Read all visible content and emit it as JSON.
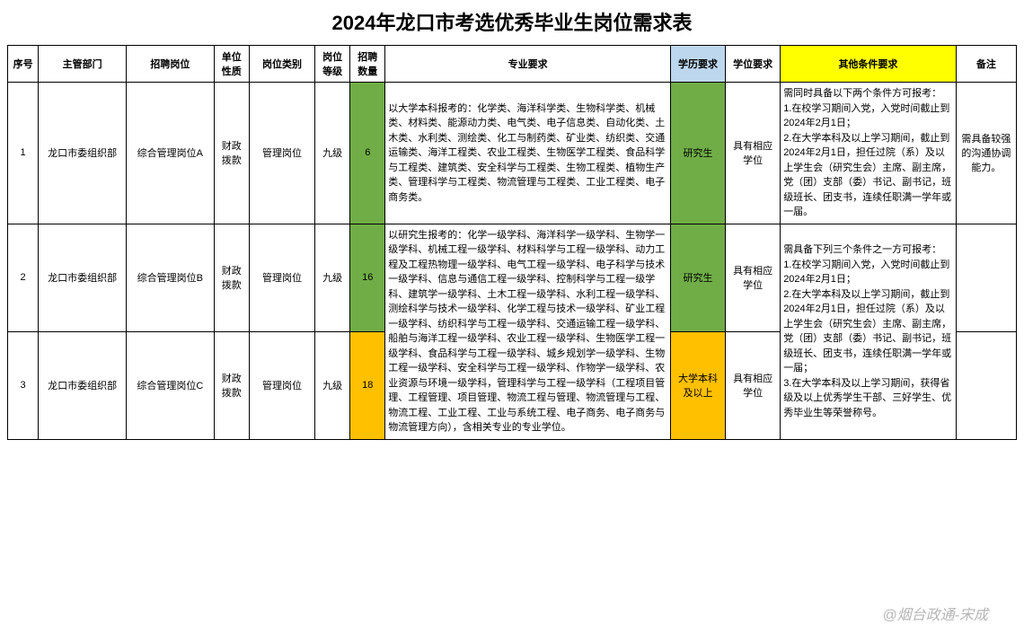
{
  "title": "2024年龙口市考选优秀毕业生岗位需求表",
  "headers": {
    "seq": "序号",
    "dept": "主管部门",
    "post": "招聘岗位",
    "nature": "单位性质",
    "type": "岗位类别",
    "level": "岗位等级",
    "count": "招聘数量",
    "major": "专业要求",
    "edu": "学历要求",
    "degree": "学位要求",
    "other": "其他条件要求",
    "remark": "备注"
  },
  "colors": {
    "green": "#70ad47",
    "orange": "#ffc000",
    "yellow": "#ffff00",
    "lightblue": "#bdd7ee"
  },
  "rows": [
    {
      "seq": "1",
      "dept": "龙口市委组织部",
      "post": "综合管理岗位A",
      "nature": "财政拨款",
      "type": "管理岗位",
      "level": "九级",
      "count": "6",
      "count_bg": "hl-green",
      "major": "以大学本科报考的：化学类、海洋科学类、生物科学类、机械类、材料类、能源动力类、电气类、电子信息类、自动化类、土木类、水利类、测绘类、化工与制药类、矿业类、纺织类、交通运输类、海洋工程类、农业工程类、生物医学工程类、食品科学与工程类、建筑类、安全科学与工程类、生物工程类、植物生产类、管理科学与工程类、物流管理与工程类、工业工程类、电子商务类。",
      "edu": "研究生",
      "edu_bg": "hl-green",
      "degree": "具有相应学位",
      "other": "需同时具备以下两个条件方可报考：\n1.在校学习期间入党，入党时间截止到2024年2月1日；\n2.在大学本科及以上学习期间，截止到2024年2月1日，担任过院（系）及以上学生会（研究生会）主席、副主席，党（团）支部（委）书记、副书记，班级班长、团支书，连续任职满一学年或一届。",
      "remark": "需具备较强的沟通协调能力。"
    },
    {
      "seq": "2",
      "dept": "龙口市委组织部",
      "post": "综合管理岗位B",
      "nature": "财政拨款",
      "type": "管理岗位",
      "level": "九级",
      "count": "16",
      "count_bg": "hl-green",
      "major": "以研究生报考的：化学一级学科、海洋科学一级学科、生物学一级学科、机械工程一级学科、材料科学与工程一级学科、动力工程及工程热物理一级学科、电气工程一级学科、电子科学与技术一级学科、信息与通信工程一级学科、控制科学与工程一级学科、建筑学一级学科、土木工程一级学科、水利工程一级学科、测绘科学与技术一级学科、化学工程与技术一级学科、矿业工程一级学科、纺织科学与工程一级学科、交通运输工程一级学科、船舶与海洋工程一级学科、农业工程一级学科、生物医学工程一级学科、食品科学与工程一级学科、城乡规划学一级学科、生物工程一级学科、安全科学与工程一级学科、作物学一级学科、农业资源与环境一级学科，管理科学与工程一级学科（工程项目管理、工程管理、项目管理、物流工程与管理、物流管理与工程、物流工程、工业工程、工业与系统工程、电子商务、电子商务与物流管理方向），含相关专业的专业学位。",
      "major_rowspan": 2,
      "edu": "研究生",
      "edu_bg": "hl-green",
      "degree": "具有相应学位",
      "other": "需具备下列三个条件之一方可报考：\n1.在校学习期间入党，入党时间截止到2024年2月1日；\n2.在大学本科及以上学习期间，截止到2024年2月1日，担任过院（系）及以上学生会（研究生会）主席、副主席，党（团）支部（委）书记、副书记，班级班长、团支书，连续任职满一学年或一届；\n3.在大学本科及以上学习期间，获得省级及以上优秀学生干部、三好学生、优秀毕业生等荣誉称号。",
      "other_rowspan": 2,
      "remark": ""
    },
    {
      "seq": "3",
      "dept": "龙口市委组织部",
      "post": "综合管理岗位C",
      "nature": "财政拨款",
      "type": "管理岗位",
      "level": "九级",
      "count": "18",
      "count_bg": "hl-orange",
      "edu": "大学本科及以上",
      "edu_bg": "hl-orange",
      "degree": "具有相应学位",
      "remark": ""
    }
  ],
  "watermark": "@烟台政通-宋成"
}
